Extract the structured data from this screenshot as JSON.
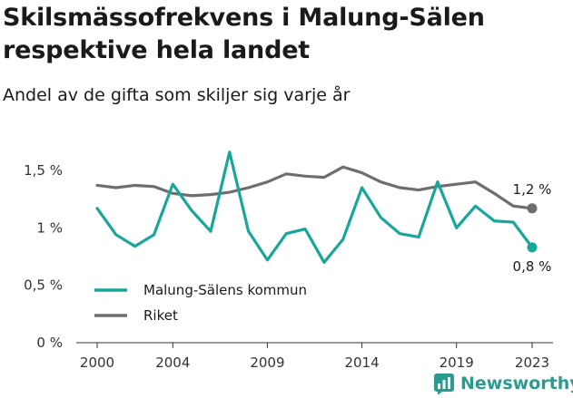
{
  "title": "Skilsmässofrekvens i Malung-Sälen respektive hela landet",
  "subtitle": "Andel av de gifta som skiljer sig varje år",
  "brand": {
    "name": "Newsworthy",
    "icon": "newsworthy-logo-icon",
    "color": "#2b9a90"
  },
  "chart_data": {
    "type": "line",
    "title": "Skilsmässofrekvens i Malung-Sälen respektive hela landet",
    "subtitle": "Andel av de gifta som skiljer sig varje år",
    "xlabel": "",
    "ylabel": "",
    "x": [
      2000,
      2001,
      2002,
      2003,
      2004,
      2005,
      2006,
      2007,
      2008,
      2009,
      2010,
      2011,
      2012,
      2013,
      2014,
      2015,
      2016,
      2017,
      2018,
      2019,
      2020,
      2021,
      2022,
      2023
    ],
    "xlim": [
      2000,
      2023
    ],
    "x_ticks": [
      2000,
      2004,
      2009,
      2014,
      2019,
      2023
    ],
    "ylim": [
      0,
      1.5
    ],
    "y_ticks": [
      {
        "value": 0,
        "label": "0 %"
      },
      {
        "value": 0.5,
        "label": "0,5 %"
      },
      {
        "value": 1,
        "label": "1 %"
      },
      {
        "value": 1.5,
        "label": "1,5 %"
      }
    ],
    "grid": false,
    "legend_position": "bottom-left",
    "series": [
      {
        "name": "Malung-Sälens kommun",
        "color": "#19a69a",
        "values": [
          1.17,
          0.94,
          0.84,
          0.94,
          1.38,
          1.15,
          0.97,
          1.66,
          0.97,
          0.72,
          0.95,
          0.99,
          0.7,
          0.9,
          1.35,
          1.09,
          0.95,
          0.92,
          1.4,
          1.0,
          1.19,
          1.06,
          1.05,
          0.83
        ],
        "end_label": "0,8 %"
      },
      {
        "name": "Riket",
        "color": "#6e6e70",
        "values": [
          1.37,
          1.35,
          1.37,
          1.36,
          1.3,
          1.28,
          1.29,
          1.31,
          1.35,
          1.4,
          1.47,
          1.45,
          1.44,
          1.53,
          1.48,
          1.4,
          1.35,
          1.33,
          1.36,
          1.38,
          1.4,
          1.3,
          1.19,
          1.17
        ],
        "end_label": "1,2 %"
      }
    ]
  }
}
